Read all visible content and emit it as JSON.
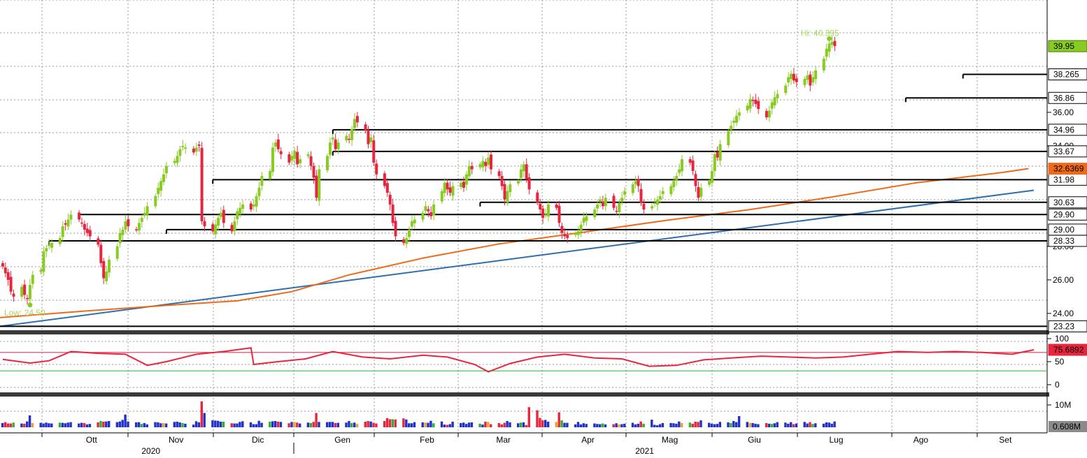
{
  "chart_data": [
    {
      "type": "candlestick",
      "pane": "price",
      "y_axis_ticks": [
        "36.00",
        "34.00",
        "28.00",
        "26.00",
        "24.00"
      ],
      "ylim": [
        22.8,
        42.0
      ],
      "hi_label": "Hi: 40.395",
      "low_label": "Low: 24.50",
      "hi_value": 40.395,
      "low_value": 24.5,
      "last_price": {
        "label": "39.95",
        "value": 39.95,
        "color": "#88cc22"
      },
      "horizontal_levels": [
        {
          "label": "38.265",
          "value": 38.265,
          "start": "2021-08-18"
        },
        {
          "label": "36.86",
          "value": 36.86,
          "start": "2021-07-28"
        },
        {
          "label": "34.96",
          "value": 34.96,
          "start": "2020-12-30"
        },
        {
          "label": "33.67",
          "value": 33.67,
          "start": "2020-12-30"
        },
        {
          "label": "31.98",
          "value": 31.98,
          "start": "2020-11-16"
        },
        {
          "label": "30.63",
          "value": 30.63,
          "start": "2021-02-22"
        },
        {
          "label": "29.90",
          "value": 29.9,
          "start": "2020-09-28"
        },
        {
          "label": "29.00",
          "value": 29.0,
          "start": "2020-10-30"
        },
        {
          "label": "28.33",
          "value": 28.33,
          "start": "2020-09-17"
        },
        {
          "label": "23.23",
          "value": 23.23,
          "start": "2020-08-30"
        }
      ],
      "moving_average": {
        "label": "32.6369",
        "color": "#ee6a1a",
        "points": [
          [
            "2020-08-30",
            23.75
          ],
          [
            "2020-10-01",
            24.15
          ],
          [
            "2020-11-01",
            24.5
          ],
          [
            "2020-11-25",
            24.75
          ],
          [
            "2020-12-15",
            25.3
          ],
          [
            "2021-01-05",
            26.3
          ],
          [
            "2021-02-01",
            27.3
          ],
          [
            "2021-03-01",
            28.15
          ],
          [
            "2021-04-01",
            28.85
          ],
          [
            "2021-05-01",
            29.55
          ],
          [
            "2021-06-01",
            30.2
          ],
          [
            "2021-07-01",
            30.95
          ],
          [
            "2021-08-01",
            31.8
          ],
          [
            "2021-09-01",
            32.4
          ],
          [
            "2021-09-11",
            32.64
          ]
        ]
      },
      "trendline": {
        "color": "#2e6fb0",
        "points": [
          [
            "2020-08-30",
            23.23
          ],
          [
            "2021-09-13",
            31.35
          ]
        ]
      },
      "candles": {
        "up_color": "#88cc22",
        "down_color": "#e8253e",
        "start": "2020-08-31",
        "closes": [
          26.8,
          26.4,
          26.0,
          25.3,
          25.0,
          25.6,
          25.1,
          24.9,
          25.7,
          26.3,
          26.6,
          27.7,
          27.9,
          28.1,
          28.2,
          28.5,
          29.2,
          29.3,
          29.6,
          29.9,
          29.6,
          29.4,
          29.0,
          28.8,
          28.6,
          28.1,
          27.0,
          26.1,
          26.5,
          27.2,
          28.0,
          28.8,
          29.0,
          29.5,
          29.2,
          29.0,
          29.4,
          29.7,
          30.0,
          30.4,
          31.0,
          31.5,
          31.9,
          32.3,
          32.8,
          33.1,
          33.4,
          33.8,
          34.0,
          33.9,
          33.6,
          33.9,
          34.0,
          29.5,
          29.2,
          28.9,
          29.3,
          29.7,
          30.0,
          29.4,
          28.9,
          29.5,
          30.1,
          30.3,
          30.5,
          30.2,
          30.5,
          31.0,
          31.5,
          32.2,
          32.5,
          33.9,
          34.2,
          33.8,
          33.5,
          33.0,
          33.4,
          33.7,
          32.9,
          33.2,
          33.5,
          32.8,
          32.1,
          30.9,
          32.6,
          33.4,
          34.2,
          34.5,
          33.8,
          34.2,
          34.6,
          34.4,
          35.0,
          35.6,
          35.4,
          34.9,
          34.1,
          34.5,
          33.0,
          32.3,
          31.6,
          31.2,
          30.5,
          29.4,
          28.6,
          28.2,
          28.5,
          29.0,
          29.5,
          29.6,
          30.0,
          30.4,
          30.1,
          29.8,
          30.5,
          31.3,
          31.8,
          31.4,
          31.2,
          31.6,
          31.8,
          31.5,
          32.3,
          32.8,
          32.6,
          32.9,
          33.1,
          32.8,
          33.3,
          32.6,
          32.2,
          31.6,
          30.8,
          31.3,
          31.7,
          31.9,
          32.6,
          32.9,
          32.0,
          31.4,
          30.6,
          30.2,
          29.7,
          29.9,
          30.5,
          30.3,
          29.4,
          28.8,
          28.6,
          28.5,
          28.8,
          28.9,
          29.3,
          29.7,
          29.8,
          30.2,
          30.5,
          30.8,
          30.4,
          30.9,
          30.3,
          30.1,
          30.6,
          30.9,
          31.3,
          31.7,
          31.9,
          31.6,
          30.6,
          30.2,
          30.4,
          30.6,
          30.8,
          31.0,
          31.3,
          31.6,
          31.9,
          32.2,
          32.6,
          33.2,
          33.0,
          32.5,
          31.6,
          30.9,
          31.5,
          31.9,
          32.5,
          33.5,
          33.3,
          34.1,
          34.9,
          35.2,
          35.5,
          35.8,
          36.0,
          36.4,
          36.8,
          36.7,
          36.5,
          36.2,
          35.7,
          36.1,
          36.6,
          36.9,
          37.1,
          37.6,
          38.1,
          38.3,
          37.9,
          37.8,
          38.0,
          38.2,
          37.6,
          38.1,
          38.5,
          39.2,
          39.8,
          40.1,
          40.2,
          39.95
        ]
      },
      "x_ticks": [
        {
          "label": "Ott",
          "date": "2020-10-01"
        },
        {
          "label": "Nov",
          "date": "2020-11-01"
        },
        {
          "label": "Dic",
          "date": "2020-12-01"
        },
        {
          "label": "Gen",
          "date": "2021-01-01"
        },
        {
          "label": "Feb",
          "date": "2021-02-01"
        },
        {
          "label": "Mar",
          "date": "2021-03-01"
        },
        {
          "label": "Apr",
          "date": "2021-04-01"
        },
        {
          "label": "Mag",
          "date": "2021-05-01"
        },
        {
          "label": "Giu",
          "date": "2021-06-01"
        },
        {
          "label": "Lug",
          "date": "2021-07-01"
        },
        {
          "label": "Ago",
          "date": "2021-08-01"
        },
        {
          "label": "Set",
          "date": "2021-09-01"
        }
      ],
      "years": [
        {
          "label": "2020",
          "date": "2020-11-01"
        },
        {
          "label": "2021",
          "date": "2021-05-01"
        }
      ]
    },
    {
      "type": "line",
      "pane": "rsi",
      "ylim": [
        0,
        100
      ],
      "y_axis_ticks": [
        "100",
        "50",
        "0"
      ],
      "reference_levels": [
        {
          "value": 70,
          "color": "#e8253e"
        },
        {
          "value": 30,
          "color": "#2db22d"
        }
      ],
      "last_value": {
        "label": "75.6892",
        "value": 75.6892
      },
      "color": "#e8253e",
      "points": [
        [
          "2020-08-31",
          55
        ],
        [
          "2020-09-10",
          47
        ],
        [
          "2020-09-17",
          52
        ],
        [
          "2020-09-25",
          72
        ],
        [
          "2020-10-05",
          68
        ],
        [
          "2020-10-15",
          66
        ],
        [
          "2020-10-23",
          42
        ],
        [
          "2020-10-30",
          50
        ],
        [
          "2020-11-10",
          66
        ],
        [
          "2020-11-20",
          72
        ],
        [
          "2020-11-30",
          80
        ],
        [
          "2020-12-01",
          44
        ],
        [
          "2020-12-10",
          50
        ],
        [
          "2020-12-20",
          56
        ],
        [
          "2020-12-30",
          72
        ],
        [
          "2021-01-10",
          60
        ],
        [
          "2021-01-20",
          56
        ],
        [
          "2021-02-01",
          64
        ],
        [
          "2021-02-10",
          60
        ],
        [
          "2021-02-20",
          44
        ],
        [
          "2021-02-25",
          28
        ],
        [
          "2021-03-05",
          46
        ],
        [
          "2021-03-15",
          60
        ],
        [
          "2021-03-25",
          66
        ],
        [
          "2021-04-05",
          58
        ],
        [
          "2021-04-15",
          56
        ],
        [
          "2021-04-25",
          40
        ],
        [
          "2021-05-05",
          42
        ],
        [
          "2021-05-15",
          54
        ],
        [
          "2021-05-25",
          58
        ],
        [
          "2021-06-05",
          62
        ],
        [
          "2021-06-15",
          60
        ],
        [
          "2021-06-25",
          58
        ],
        [
          "2021-07-05",
          60
        ],
        [
          "2021-07-15",
          66
        ],
        [
          "2021-07-25",
          72
        ],
        [
          "2021-08-05",
          70
        ],
        [
          "2021-08-15",
          72
        ],
        [
          "2021-08-25",
          70
        ],
        [
          "2021-09-05",
          66
        ],
        [
          "2021-09-13",
          75.7
        ]
      ]
    },
    {
      "type": "bar",
      "pane": "volume",
      "y_axis_ticks": [
        "10M"
      ],
      "ylim": [
        0,
        14000000
      ],
      "last_value": {
        "label": "0.608M",
        "value": 608000
      },
      "volumes_m": [
        1.9,
        2.3,
        1.7,
        1.7,
        2.1,
        1.7,
        1.6,
        2.6,
        5.3,
        1.9,
        2.0,
        1.7,
        2.1,
        1.8,
        1.7,
        2.1,
        2.0,
        1.8,
        2.1,
        2.3,
        1.7,
        2.0,
        1.9,
        1.3,
        1.5,
        2.2,
        2.8,
        2.5,
        2.6,
        2.8,
        2.3,
        2.6,
        3.3,
        5.7,
        2.6,
        2.2,
        2.3,
        1.5,
        1.9,
        1.3,
        2.3,
        2.2,
        1.8,
        1.9,
        1.7,
        2.4,
        2.5,
        2.2,
        1.9,
        1.6,
        1.2,
        2.7,
        2.2,
        11.6,
        6.4,
        3.1,
        3.0,
        2.9,
        2.5,
        2.5,
        1.8,
        1.7,
        1.7,
        2.4,
        2.7,
        2.2,
        1.4,
        1.4,
        2.9,
        2.0,
        2.5,
        2.7,
        2.8,
        2.5,
        2.4,
        1.8,
        2.4,
        2.4,
        2.1,
        1.7,
        2.1,
        1.9,
        2.4,
        6.4,
        2.4,
        2.3,
        2.4,
        2.4,
        1.9,
        2.0,
        2.1,
        2.8,
        1.9,
        2.1,
        1.5,
        2.5,
        2.8,
        2.6,
        2.0,
        1.7,
        2.8,
        4.1,
        3.6,
        3.6,
        3.5,
        4.0,
        3.5,
        1.8,
        1.8,
        2.3,
        2.2,
        2.1,
        2.0,
        2.9,
        1.8,
        2.6,
        1.2,
        1.1,
        1.4,
        2.5,
        1.9,
        2.1,
        1.5,
        2.1,
        2.2,
        1.6,
        1.2,
        2.5,
        2.4,
        1.4,
        1.9,
        1.3,
        2.0,
        2.8,
        2.2,
        1.8,
        2.1,
        2.2,
        1.0,
        9.0,
        7.6,
        4.2,
        3.1,
        3.3,
        2.5,
        2.4,
        6.7,
        3.1,
        2.0,
        2.0,
        1.3,
        2.4,
        1.3,
        1.8,
        1.5,
        1.7,
        1.5,
        1.4,
        1.7,
        1.3,
        1.4,
        1.8,
        1.3,
        1.4,
        1.6,
        2.0,
        1.3,
        1.6,
        2.6,
        1.6,
        3.4,
        1.1,
        0.9,
        1.4,
        1.9,
        1.9,
        1.8,
        1.6,
        2.6,
        1.9,
        2.1,
        1.6,
        2.5,
        2.4,
        3.1,
        2.0,
        1.6,
        1.4,
        1.5,
        2.4,
        2.2,
        1.9,
        2.8,
        2.3,
        5.0,
        2.4,
        2.0,
        1.9,
        1.6,
        1.4,
        1.9,
        1.6,
        1.5,
        1.8,
        2.3,
        2.1,
        1.6,
        2.3,
        1.4,
        1.7,
        2.4,
        1.7,
        2.3,
        1.5,
        1.8,
        1.6,
        2.2,
        2.1,
        1.6,
        2.6,
        1.6,
        1.9,
        1.3,
        1.5,
        1.8,
        2.2,
        1.9,
        1.3,
        0.608
      ]
    }
  ]
}
